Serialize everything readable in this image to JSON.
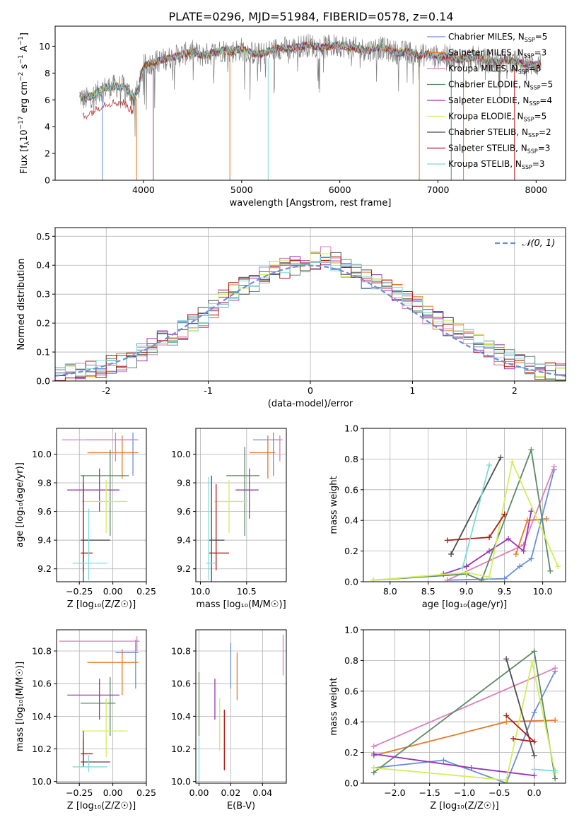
{
  "figure": {
    "title": "PLATE=0296, MJD=51984, FIBERID=0578, z=0.14"
  },
  "models": [
    {
      "name": "Chabrier MILES, N",
      "nssp": "=5",
      "color": "#6a8fd8"
    },
    {
      "name": "Salpeter MILES, N",
      "nssp": "=3",
      "color": "#e7782a"
    },
    {
      "name": "Kroupa MILES, N",
      "nssp": "=3",
      "color": "#de7fb8"
    },
    {
      "name": "Chabrier ELODIE, N",
      "nssp": "=5",
      "color": "#5c8a64"
    },
    {
      "name": "Salpeter ELODIE, N",
      "nssp": "=4",
      "color": "#9b35b5"
    },
    {
      "name": "Kroupa ELODIE, N",
      "nssp": "=5",
      "color": "#d3ee5b"
    },
    {
      "name": "Chabrier STELIB, N",
      "nssp": "=2",
      "color": "#4d4d4d"
    },
    {
      "name": "Salpeter STELIB, N",
      "nssp": "=3",
      "color": "#b01818"
    },
    {
      "name": "Kroupa STELIB, N",
      "nssp": "=3",
      "color": "#7ed9dd"
    }
  ],
  "chart_data": [
    {
      "type": "line",
      "panel": "spectrum",
      "xlabel": "wavelength [Angstrom, rest frame]",
      "ylabel": "Flux [f_λ10^-17 erg cm^-2 s^-1 A^-1]",
      "xlim": [
        3100,
        8300
      ],
      "ylim": [
        0,
        11.5
      ],
      "xticks": [
        4000,
        5000,
        6000,
        7000,
        8000
      ],
      "yticks": [
        0,
        2,
        4,
        6,
        8,
        10
      ],
      "data_color": "#7f7f7f",
      "legend_position": "right",
      "x": [
        3350,
        3400,
        3500,
        3600,
        3700,
        3800,
        3900,
        3950,
        4000,
        4100,
        4200,
        4300,
        4400,
        4500,
        4600,
        4700,
        4800,
        4900,
        5000,
        5100,
        5200,
        5300,
        5400,
        5500,
        5600,
        5700,
        5800,
        5900,
        6000,
        6100,
        6200,
        6300,
        6400,
        6500,
        6600,
        6700,
        6800,
        6900,
        7000,
        7100,
        7200,
        7300,
        7400,
        7500,
        7600,
        7700,
        7800,
        7900,
        8000,
        8050
      ],
      "y": [
        6.3,
        6.0,
        6.4,
        6.9,
        7.0,
        7.0,
        6.2,
        6.8,
        8.5,
        8.8,
        9.0,
        9.2,
        9.4,
        9.6,
        9.3,
        9.5,
        9.7,
        9.6,
        9.8,
        9.5,
        9.4,
        9.7,
        9.9,
        9.8,
        10.0,
        10.1,
        9.9,
        10.0,
        10.1,
        9.9,
        9.8,
        9.7,
        9.9,
        9.7,
        9.5,
        9.6,
        9.3,
        9.4,
        9.2,
        9.3,
        9.0,
        9.1,
        9.2,
        8.9,
        8.8,
        9.0,
        8.8,
        8.7,
        8.6,
        8.7
      ],
      "absorption_lines": [
        3580,
        3930,
        4100,
        4880,
        5270,
        6810,
        7135,
        7260,
        7780
      ]
    },
    {
      "type": "histogram",
      "panel": "residuals",
      "xlabel": "(data-model)/error",
      "ylabel": "Normed distribution",
      "xlim": [
        -2.5,
        2.5
      ],
      "ylim": [
        0,
        0.53
      ],
      "xticks": [
        -2,
        -1,
        0,
        1,
        2
      ],
      "yticks": [
        0.0,
        0.1,
        0.2,
        0.3,
        0.4,
        0.5
      ],
      "reference_label": "𝒩(0, 1)",
      "reference_color": "#6a8fd8",
      "bin_edges": [
        -2.5,
        -2.4,
        -2.3,
        -2.2,
        -2.1,
        -2.0,
        -1.9,
        -1.8,
        -1.7,
        -1.6,
        -1.5,
        -1.4,
        -1.3,
        -1.2,
        -1.1,
        -1.0,
        -0.9,
        -0.8,
        -0.7,
        -0.6,
        -0.5,
        -0.4,
        -0.3,
        -0.2,
        -0.1,
        0.0,
        0.1,
        0.2,
        0.3,
        0.4,
        0.5,
        0.6,
        0.7,
        0.8,
        0.9,
        1.0,
        1.1,
        1.2,
        1.3,
        1.4,
        1.5,
        1.6,
        1.7,
        1.8,
        1.9,
        2.0,
        2.1,
        2.2,
        2.3,
        2.4,
        2.5
      ],
      "base_density": [
        0.02,
        0.025,
        0.03,
        0.035,
        0.045,
        0.055,
        0.065,
        0.08,
        0.1,
        0.12,
        0.14,
        0.155,
        0.175,
        0.2,
        0.22,
        0.25,
        0.28,
        0.31,
        0.33,
        0.34,
        0.36,
        0.38,
        0.39,
        0.4,
        0.41,
        0.42,
        0.43,
        0.41,
        0.39,
        0.37,
        0.35,
        0.34,
        0.32,
        0.3,
        0.28,
        0.26,
        0.23,
        0.21,
        0.19,
        0.17,
        0.15,
        0.13,
        0.11,
        0.09,
        0.075,
        0.06,
        0.05,
        0.04,
        0.035,
        0.03
      ]
    },
    {
      "type": "scatter",
      "panel": "age-vs-Z",
      "xlabel": "Z [log₁₀(Z/Z☉)]",
      "ylabel": "age  [log₁₀(age/yr)]",
      "xlim": [
        -0.42,
        0.25
      ],
      "ylim": [
        9.11,
        10.18
      ],
      "xticks": [
        -0.25,
        0.0,
        0.25
      ],
      "xtick_labels": [
        "−0.25",
        "0.00",
        "0.25"
      ],
      "yticks": [
        9.2,
        9.4,
        9.6,
        9.8,
        10.0
      ],
      "points": [
        {
          "x": 0.15,
          "y": 10.1,
          "xerr": [
            0.35,
            0.04
          ],
          "yerr": [
            0.25,
            0.05
          ]
        },
        {
          "x": 0.07,
          "y": 10.01,
          "xerr": [
            0.26,
            0.12
          ],
          "yerr": [
            0.18,
            0.12
          ]
        },
        {
          "x": 0.02,
          "y": 10.1,
          "xerr": [
            0.4,
            0.15
          ],
          "yerr": [
            0.15,
            0.05
          ]
        },
        {
          "x": -0.02,
          "y": 9.85,
          "xerr": [
            0.22,
            0.14
          ],
          "yerr": [
            0.42,
            0.18
          ]
        },
        {
          "x": -0.1,
          "y": 9.75,
          "xerr": [
            0.24,
            0.15
          ],
          "yerr": [
            0.15,
            0.15
          ]
        },
        {
          "x": -0.05,
          "y": 9.67,
          "xerr": [
            0.18,
            0.16
          ],
          "yerr": [
            0.22,
            0.15
          ]
        },
        {
          "x": -0.22,
          "y": 9.4,
          "xerr": [
            0.02,
            0.2
          ],
          "yerr": [
            0.38,
            0.45
          ]
        },
        {
          "x": -0.22,
          "y": 9.31,
          "xerr": [
            0.02,
            0.07
          ],
          "yerr": [
            0.13,
            0.48
          ]
        },
        {
          "x": -0.18,
          "y": 9.24,
          "xerr": [
            0.12,
            0.14
          ],
          "yerr": [
            0.12,
            0.38
          ]
        }
      ]
    },
    {
      "type": "scatter",
      "panel": "age-vs-mass",
      "xlabel": "mass [log₁₀(M/M☉)]",
      "xlim": [
        9.95,
        10.93
      ],
      "ylim": [
        9.11,
        10.18
      ],
      "xticks": [
        10.0,
        10.5
      ],
      "xtick_labels": [
        "10.0",
        "10.5"
      ],
      "yticks": [
        9.2,
        9.4,
        9.6,
        9.8,
        10.0
      ],
      "points": [
        {
          "x": 10.79,
          "y": 10.1,
          "xerr": [
            0.22,
            0.08
          ],
          "yerr": [
            0.25,
            0.05
          ]
        },
        {
          "x": 10.73,
          "y": 10.01,
          "xerr": [
            0.2,
            0.08
          ],
          "yerr": [
            0.18,
            0.12
          ]
        },
        {
          "x": 10.86,
          "y": 10.1,
          "xerr": [
            0.06,
            0.03
          ],
          "yerr": [
            0.15,
            0.03
          ]
        },
        {
          "x": 10.48,
          "y": 9.85,
          "xerr": [
            0.2,
            0.16
          ],
          "yerr": [
            0.42,
            0.2
          ]
        },
        {
          "x": 10.53,
          "y": 9.75,
          "xerr": [
            0.15,
            0.1
          ],
          "yerr": [
            0.2,
            0.15
          ]
        },
        {
          "x": 10.31,
          "y": 9.67,
          "xerr": [
            0.16,
            0.2
          ],
          "yerr": [
            0.22,
            0.15
          ]
        },
        {
          "x": 10.12,
          "y": 9.4,
          "xerr": [
            0.03,
            0.14
          ],
          "yerr": [
            0.38,
            0.45
          ]
        },
        {
          "x": 10.17,
          "y": 9.31,
          "xerr": [
            0.08,
            0.14
          ],
          "yerr": [
            0.12,
            0.48
          ]
        },
        {
          "x": 10.09,
          "y": 9.24,
          "xerr": [
            0.03,
            0.07
          ],
          "yerr": [
            0.12,
            0.6
          ]
        }
      ]
    },
    {
      "type": "line",
      "panel": "weight-vs-age",
      "xlabel": "age  [log₁₀(age/yr)]",
      "ylabel": "mass weight",
      "xlim": [
        7.65,
        10.3
      ],
      "ylim": [
        0,
        1.0
      ],
      "xticks": [
        8.0,
        8.5,
        9.0,
        9.5,
        10.0
      ],
      "xtick_labels": [
        "8.0",
        "8.5",
        "9.0",
        "9.5",
        "10.0"
      ],
      "yticks": [
        0.0,
        0.2,
        0.4,
        0.6,
        0.8,
        1.0
      ],
      "series": [
        {
          "x": [
            8.75,
            9.5,
            9.7,
            9.85,
            10.15
          ],
          "y": [
            0.01,
            0.02,
            0.1,
            0.15,
            0.73
          ]
        },
        {
          "x": [
            9.65,
            9.8,
            10.05
          ],
          "y": [
            0.18,
            0.4,
            0.41
          ]
        },
        {
          "x": [
            8.75,
            9.75,
            10.15
          ],
          "y": [
            0.01,
            0.24,
            0.75
          ]
        },
        {
          "x": 7.78,
          "_note": ""
        },
        {
          "x": [
            7.78,
            9.0,
            9.2,
            9.85,
            10.1
          ],
          "y": [
            0.01,
            0.05,
            0.01,
            0.86,
            0.07
          ]
        },
        {
          "x": [
            8.7,
            9.0,
            9.3,
            9.55,
            9.75,
            9.85
          ],
          "y": [
            0.05,
            0.1,
            0.2,
            0.28,
            0.2,
            0.46
          ]
        },
        {
          "x": [
            7.78,
            9.0,
            9.3,
            9.6,
            10.2
          ],
          "y": [
            0.01,
            0.06,
            0.03,
            0.78,
            0.1
          ]
        },
        {
          "x": [
            8.8,
            9.45
          ],
          "y": [
            0.18,
            0.81
          ]
        },
        {
          "x": [
            8.75,
            9.3,
            9.5
          ],
          "y": [
            0.27,
            0.29,
            0.44
          ]
        },
        {
          "x": [
            8.95,
            9.3
          ],
          "y": [
            0.09,
            0.76
          ]
        }
      ]
    },
    {
      "type": "scatter",
      "panel": "mass-vs-Z",
      "xlabel": "Z [log₁₀(Z/Z☉)]",
      "ylabel": "mass [log₁₀(M/M☉)]",
      "xlim": [
        -0.42,
        0.25
      ],
      "ylim": [
        9.99,
        10.93
      ],
      "xticks": [
        -0.25,
        0.0,
        0.25
      ],
      "xtick_labels": [
        "−0.25",
        "0.00",
        "0.25"
      ],
      "yticks": [
        10.0,
        10.2,
        10.4,
        10.6,
        10.8
      ],
      "points": [
        {
          "x": 0.17,
          "y": 10.79,
          "xerr": [
            0.15,
            0.02
          ],
          "yerr": [
            0.22,
            0.08
          ]
        },
        {
          "x": 0.07,
          "y": 10.73,
          "xerr": [
            0.26,
            0.12
          ],
          "yerr": [
            0.2,
            0.08
          ]
        },
        {
          "x": 0.18,
          "y": 10.86,
          "xerr": [
            0.58,
            0.02
          ],
          "yerr": [
            0.06,
            0.03
          ]
        },
        {
          "x": -0.02,
          "y": 10.48,
          "xerr": [
            0.22,
            0.04
          ],
          "yerr": [
            0.2,
            0.16
          ]
        },
        {
          "x": -0.1,
          "y": 10.53,
          "xerr": [
            0.24,
            0.15
          ],
          "yerr": [
            0.15,
            0.1
          ]
        },
        {
          "x": -0.05,
          "y": 10.31,
          "xerr": [
            0.18,
            0.16
          ],
          "yerr": [
            0.16,
            0.2
          ]
        },
        {
          "x": -0.22,
          "y": 10.12,
          "xerr": [
            0.02,
            0.2
          ],
          "yerr": [
            0.03,
            0.14
          ]
        },
        {
          "x": -0.22,
          "y": 10.17,
          "xerr": [
            0.02,
            0.07
          ],
          "yerr": [
            0.08,
            0.14
          ]
        },
        {
          "x": -0.18,
          "y": 10.09,
          "xerr": [
            0.12,
            0.14
          ],
          "yerr": [
            0.03,
            0.07
          ]
        }
      ]
    },
    {
      "type": "scatter",
      "panel": "mass-vs-EBV",
      "xlabel": "E(B-V)",
      "xlim": [
        -0.002,
        0.055
      ],
      "ylim": [
        9.99,
        10.93
      ],
      "xticks": [
        0.0,
        0.02,
        0.04
      ],
      "xtick_labels": [
        "0.00",
        "0.02",
        "0.04"
      ],
      "yticks": [
        10.0,
        10.2,
        10.4,
        10.6,
        10.8
      ],
      "points": [
        {
          "x": 0.02,
          "y": 10.79,
          "yerr": [
            0.22,
            0.06
          ]
        },
        {
          "x": 0.024,
          "y": 10.73,
          "yerr": [
            0.23,
            0.06
          ]
        },
        {
          "x": 0.053,
          "y": 10.86,
          "yerr": [
            0.21,
            0.04
          ]
        },
        {
          "x": 0.0,
          "y": 10.48,
          "yerr": [
            0.2,
            0.19
          ]
        },
        {
          "x": 0.01,
          "y": 10.53,
          "yerr": [
            0.15,
            0.1
          ]
        },
        {
          "x": 0.013,
          "y": 10.31,
          "yerr": [
            0.12,
            0.2
          ]
        },
        {
          "x": 0.016,
          "y": 10.12,
          "yerr": [
            0.05,
            0.32
          ]
        },
        {
          "x": 0.016,
          "y": 10.17,
          "yerr": [
            0.1,
            0.27
          ]
        },
        {
          "x": 0.0,
          "y": 10.09,
          "yerr": [
            0.09,
            0.18
          ]
        }
      ]
    },
    {
      "type": "line",
      "panel": "weight-vs-Z",
      "xlabel": "Z [log₁₀(Z/Z☉)]",
      "ylabel": "mass weight",
      "xlim": [
        -2.45,
        0.45
      ],
      "ylim": [
        0,
        1.0
      ],
      "xticks": [
        -2.0,
        -1.5,
        -1.0,
        -0.5,
        0.0
      ],
      "xtick_labels": [
        "−2.0",
        "−1.5",
        "−1.0",
        "−0.5",
        "0.0"
      ],
      "yticks": [
        0.0,
        0.2,
        0.4,
        0.6,
        0.8,
        1.0
      ],
      "series": [
        {
          "x": [
            -2.3,
            -1.3,
            -0.4,
            0.0,
            0.3
          ],
          "y": [
            0.1,
            0.15,
            0.0,
            0.46,
            0.73
          ]
        },
        {
          "x": [
            -2.3,
            -0.4,
            0.3
          ],
          "y": [
            0.18,
            0.4,
            0.41
          ]
        },
        {
          "x": [
            -2.3,
            0.3
          ],
          "y": [
            0.24,
            0.75
          ]
        },
        {
          "x": [
            -2.3,
            0.0,
            0.3
          ],
          "y": [
            0.07,
            0.86,
            0.03
          ]
        },
        {
          "x": [
            -2.3,
            -0.9,
            0.0
          ],
          "y": [
            0.19,
            0.1,
            0.05
          ]
        },
        {
          "x": [
            -2.3,
            -0.4,
            -0.03,
            0.3
          ],
          "y": [
            0.1,
            0.02,
            0.79,
            0.07
          ]
        },
        {
          "x": [
            -0.4,
            0.0
          ],
          "y": [
            0.81,
            0.18
          ]
        },
        {
          "x": [
            -0.4,
            0.0,
            -0.3
          ],
          "y": [
            0.44,
            0.27,
            0.29
          ]
        },
        {
          "x": [
            0.0,
            0.3
          ],
          "y": [
            0.09,
            0.08
          ]
        }
      ]
    }
  ]
}
